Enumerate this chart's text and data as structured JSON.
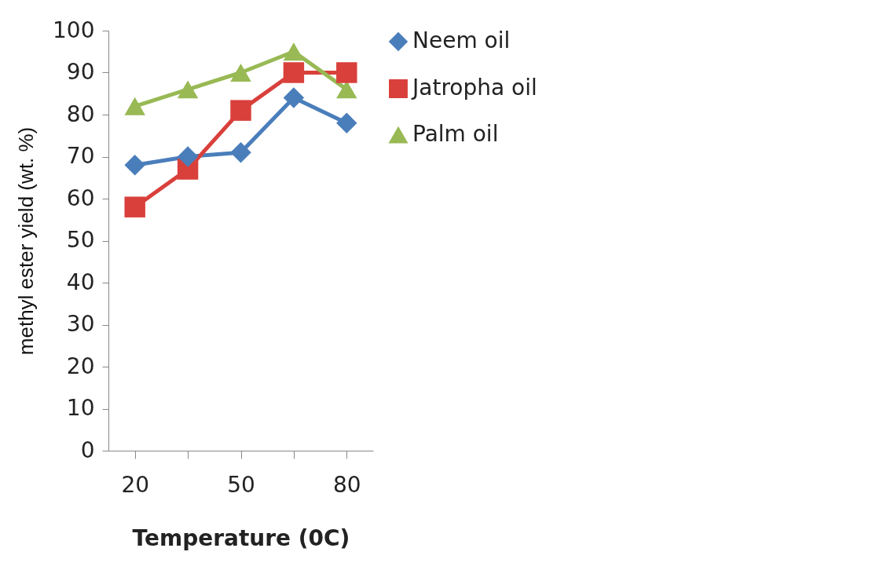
{
  "chart_data": {
    "type": "line",
    "xlabel": "Temperature (0C)",
    "ylabel": "methyl ester yield (wt. %)",
    "categories": [
      "20",
      null,
      "50",
      null,
      "80"
    ],
    "series": [
      {
        "name": "Neem oil",
        "color": "#4a7ebb",
        "marker": "diamond",
        "values": [
          68,
          70,
          71,
          84,
          78
        ]
      },
      {
        "name": "Jatropha oil",
        "color": "#d9403b",
        "marker": "square",
        "values": [
          58,
          67,
          81,
          90,
          90
        ]
      },
      {
        "name": "Palm oil",
        "color": "#98b954",
        "marker": "triangle",
        "values": [
          82,
          86,
          90,
          95,
          86
        ]
      }
    ],
    "ylim": [
      0,
      100
    ],
    "yticks": [
      0,
      10,
      20,
      30,
      40,
      50,
      60,
      70,
      80,
      90,
      100
    ],
    "grid": false,
    "legend": "right"
  }
}
